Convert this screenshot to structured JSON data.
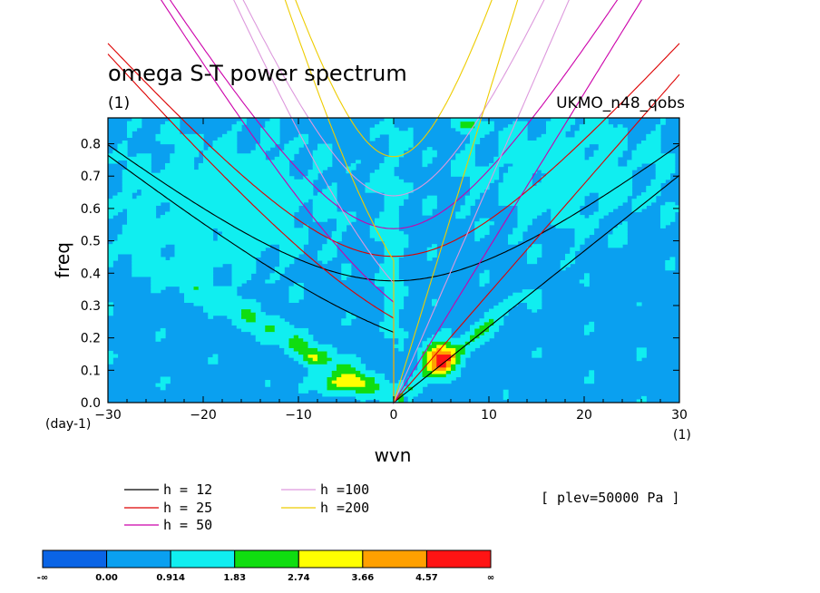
{
  "header": {
    "title": "omega S-T power spectrum",
    "units": "(1)",
    "dataset": "UKMO_n48_qobs"
  },
  "axes": {
    "xlabel": "wvn",
    "ylabel": "freq",
    "x_unit": "(1)",
    "y_unit": "(day-1)"
  },
  "plev_label": "[ plev=50000 Pa ]",
  "legend": {
    "items": [
      {
        "label": "h = 12",
        "color": "#000000"
      },
      {
        "label": "h = 25",
        "color": "#dd0000"
      },
      {
        "label": "h = 50",
        "color": "#cc00aa"
      },
      {
        "label": "h =100",
        "color": "#dd99dd"
      },
      {
        "label": "h =200",
        "color": "#eecc00"
      }
    ]
  },
  "colorbar": {
    "labels": [
      "-∞",
      "0.00",
      "0.914",
      "1.83",
      "2.74",
      "3.66",
      "4.57",
      "∞"
    ],
    "colors": [
      "#0a64e6",
      "#0aa0f0",
      "#10eef0",
      "#10dd10",
      "#ffff00",
      "#ffa000",
      "#ff1414"
    ]
  },
  "chart_data": {
    "type": "heatmap",
    "title": "omega S-T power spectrum",
    "xlabel": "wvn",
    "ylabel": "freq",
    "xlim": [
      -30,
      30
    ],
    "ylim": [
      0,
      0.88
    ],
    "x_ticks": [
      -30,
      -20,
      -10,
      0,
      10,
      20,
      30
    ],
    "y_ticks": [
      0.0,
      0.1,
      0.2,
      0.3,
      0.4,
      0.5,
      0.6,
      0.7,
      0.8
    ],
    "contour_levels": [
      0.0,
      0.914,
      1.83,
      2.74,
      3.66,
      4.57
    ],
    "background_level": "0.00 to 0.914",
    "max_power_region": {
      "wvn": [
        3,
        7
      ],
      "freq": [
        0.08,
        0.22
      ],
      "level": "> 4.57"
    },
    "dispersion_curves": [
      {
        "name": "h = 12",
        "color": "#000000"
      },
      {
        "name": "h = 25",
        "color": "#dd0000"
      },
      {
        "name": "h = 50",
        "color": "#cc00aa"
      },
      {
        "name": "h =100",
        "color": "#dd99dd"
      },
      {
        "name": "h =200",
        "color": "#eecc00"
      }
    ]
  }
}
